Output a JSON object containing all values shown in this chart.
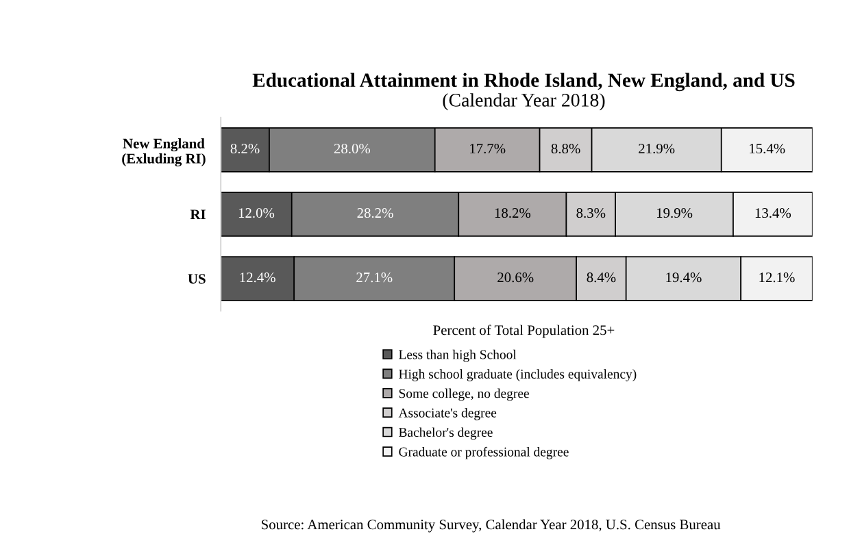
{
  "chart_data": {
    "type": "bar",
    "orientation": "horizontal",
    "stacked": true,
    "title": "Educational Attainment in Rhode Island, New England, and US",
    "subtitle": "(Calendar Year 2018)",
    "xlabel": "Percent of Total Population 25+",
    "categories": [
      "New England\n(Exluding RI)",
      "RI",
      "US"
    ],
    "xlim": [
      0,
      100
    ],
    "tick_labels": "y",
    "grid": false,
    "legend": "bottom",
    "series": [
      {
        "name": "Less than high School",
        "color": "#595959",
        "values": [
          8.2,
          12.0,
          12.4
        ],
        "value_labels": [
          "8.2%",
          "12.0%",
          "12.4%"
        ]
      },
      {
        "name": "High school graduate (includes equivalency)",
        "color": "#7f7f7f",
        "values": [
          28.0,
          28.2,
          27.1
        ],
        "value_labels": [
          "28.0%",
          "28.2%",
          "27.1%"
        ]
      },
      {
        "name": "Some college, no degree",
        "color": "#aeaaaa",
        "values": [
          17.7,
          18.2,
          20.6
        ],
        "value_labels": [
          "17.7%",
          "18.2%",
          "20.6%"
        ]
      },
      {
        "name": "Associate's degree",
        "color": "#d0cece",
        "values": [
          8.8,
          8.3,
          8.4
        ],
        "value_labels": [
          "8.8%",
          "8.3%",
          "8.4%"
        ]
      },
      {
        "name": "Bachelor's degree",
        "color": "#d9d9d9",
        "values": [
          21.9,
          19.9,
          19.4
        ],
        "value_labels": [
          "21.9%",
          "19.9%",
          "19.4%"
        ]
      },
      {
        "name": "Graduate or professional degree",
        "color": "#f2f2f2",
        "values": [
          15.4,
          13.4,
          12.1
        ],
        "value_labels": [
          "15.4%",
          "13.4%",
          "12.1%"
        ]
      }
    ],
    "annotations": [
      "Source: American Community Survey, Calendar Year 2018, U.S. Census Bureau"
    ]
  }
}
